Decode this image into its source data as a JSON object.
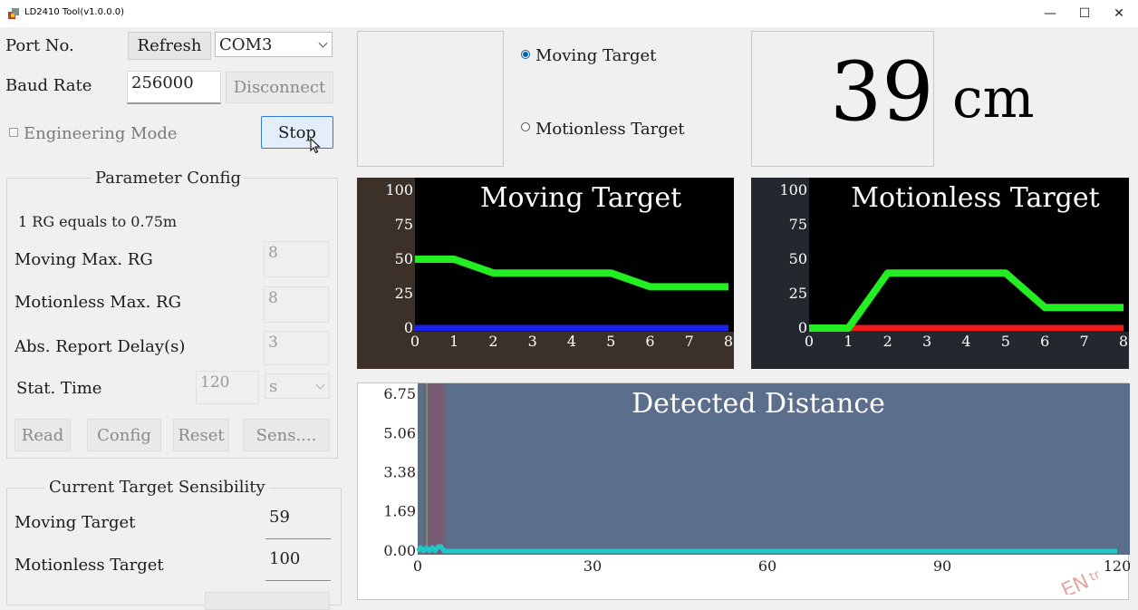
{
  "window": {
    "title": "LD2410 Tool(v1.0.0.0)",
    "controls": [
      "—",
      "☐",
      "✕"
    ]
  },
  "connection": {
    "port_label": "Port No.",
    "refresh_label": "Refresh",
    "port_value": "COM3",
    "baud_label": "Baud Rate",
    "baud_value": "256000",
    "disconnect_label": "Disconnect",
    "engineering_label": "Engineering Mode",
    "engineering_checked": false,
    "stop_label": "Stop"
  },
  "param_config": {
    "title": "Parameter Config",
    "note": "1 RG equals to 0.75m",
    "moving_max_label": "Moving Max. RG",
    "moving_max_value": "8",
    "motionless_max_label": "Motionless Max. RG",
    "motionless_max_value": "8",
    "delay_label": "Abs. Report Delay(s)",
    "delay_value": "3",
    "stat_label": "Stat. Time",
    "stat_value": "120",
    "stat_unit": "s",
    "read_label": "Read",
    "config_label": "Config",
    "reset_label": "Reset",
    "sens_label": "Sens...."
  },
  "sensibility": {
    "title": "Current Target Sensibility",
    "moving_label": "Moving Target",
    "moving_value": "59",
    "motionless_label": "Motionless Target",
    "motionless_value": "100"
  },
  "target_select": {
    "moving_label": "Moving Target",
    "motionless_label": "Motionless Target",
    "selected": "moving"
  },
  "distance": {
    "value": "39",
    "unit": "cm"
  },
  "colors": {
    "energy_line": "#22ee22",
    "moving_threshold": "#1a22ee",
    "motionless_threshold": "#ee1a1a",
    "distance_line": "#1fc8c8",
    "distance_bg": "#5b6f8c",
    "frame_moving": "#3b3129",
    "frame_motionless": "#23282f"
  },
  "chart_data": [
    {
      "type": "line",
      "title": "Moving Target",
      "x": [
        0,
        1,
        2,
        3,
        4,
        5,
        6,
        7,
        8
      ],
      "xticks": [
        "0",
        "1",
        "2",
        "3",
        "4",
        "5",
        "6",
        "7",
        "8"
      ],
      "yticks": [
        "100",
        "75",
        "50",
        "25",
        "0"
      ],
      "ylim": [
        0,
        100
      ],
      "xlim": [
        0,
        8
      ],
      "series": [
        {
          "values": [
            50,
            50,
            40,
            40,
            40,
            40,
            30,
            30,
            30
          ]
        },
        {
          "values": [
            0,
            0,
            0,
            0,
            0,
            0,
            0,
            0,
            0
          ]
        }
      ]
    },
    {
      "type": "line",
      "title": "Motionless Target",
      "x": [
        0,
        1,
        2,
        3,
        4,
        5,
        6,
        7,
        8
      ],
      "xticks": [
        "0",
        "1",
        "2",
        "3",
        "4",
        "5",
        "6",
        "7",
        "8"
      ],
      "yticks": [
        "100",
        "75",
        "50",
        "25",
        "0"
      ],
      "ylim": [
        0,
        100
      ],
      "xlim": [
        0,
        8
      ],
      "series": [
        {
          "values": [
            0,
            0,
            40,
            40,
            40,
            40,
            15,
            15,
            15
          ]
        },
        {
          "values": [
            0,
            0,
            0,
            0,
            0,
            0,
            0,
            0,
            0
          ]
        }
      ]
    },
    {
      "type": "line",
      "title": "Detected Distance",
      "xticks": [
        "0",
        "30",
        "60",
        "90",
        "120"
      ],
      "yticks": [
        "6.75",
        "5.06",
        "3.38",
        "1.69",
        "0.00"
      ],
      "xlim": [
        0,
        120
      ],
      "ylim": [
        0,
        6.75
      ],
      "series": [
        {
          "x": [
            0,
            0.5,
            1,
            1.5,
            2,
            2.5,
            3,
            3.5,
            4,
            4.5,
            5,
            120
          ],
          "values": [
            0,
            0.15,
            0,
            0.15,
            0,
            0.15,
            0,
            0.2,
            0.2,
            0,
            0,
            0
          ]
        }
      ]
    }
  ]
}
